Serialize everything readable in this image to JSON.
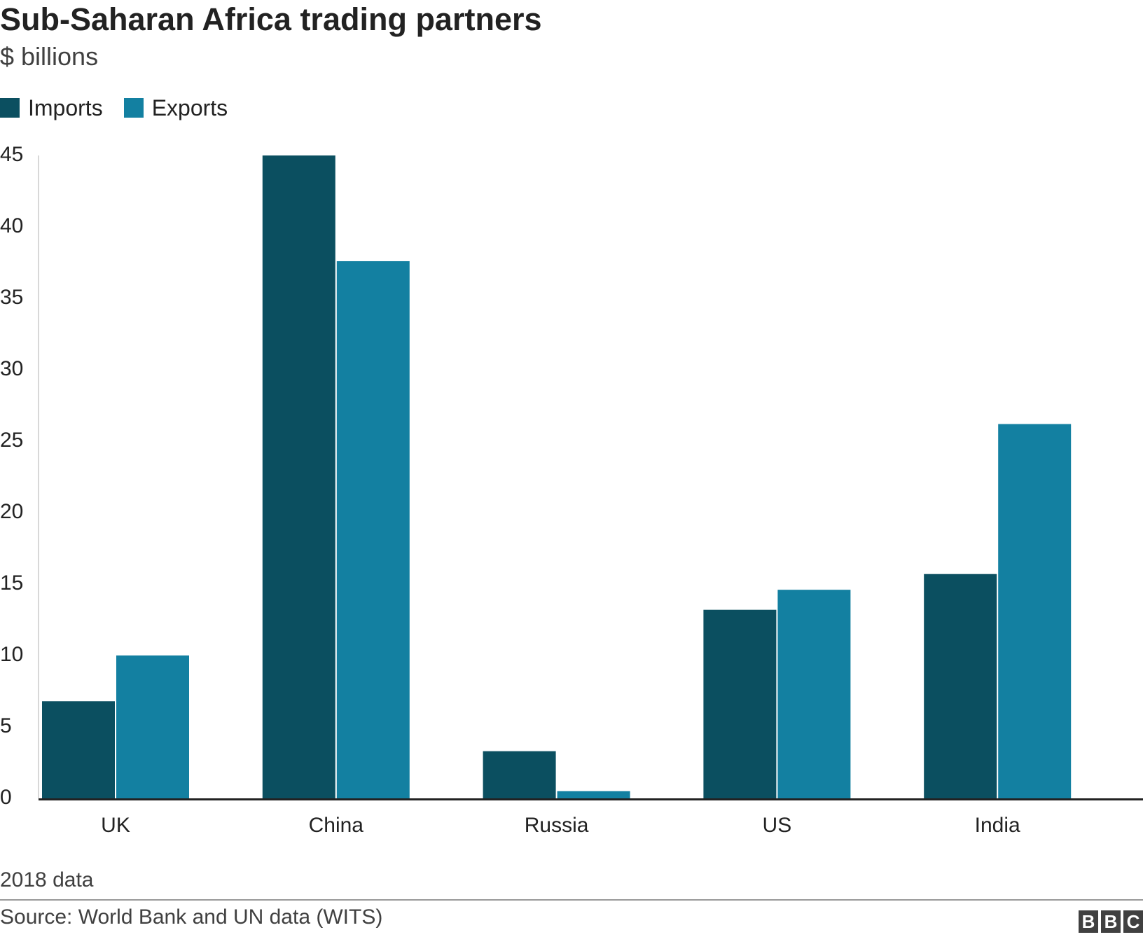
{
  "header": {
    "title": "Sub-Saharan Africa trading partners",
    "subtitle": "$ billions"
  },
  "legend": {
    "items": [
      {
        "label": "Imports",
        "color": "#0b4f60"
      },
      {
        "label": "Exports",
        "color": "#1380a1"
      }
    ]
  },
  "chart_data": {
    "type": "bar",
    "categories": [
      "UK",
      "China",
      "Russia",
      "US",
      "India"
    ],
    "series": [
      {
        "name": "Imports",
        "color": "#0b4f60",
        "values": [
          6.8,
          45.0,
          3.3,
          13.2,
          15.7
        ]
      },
      {
        "name": "Exports",
        "color": "#1380a1",
        "values": [
          10.0,
          37.6,
          0.5,
          14.6,
          26.2
        ]
      }
    ],
    "y_ticks": [
      "0",
      "5",
      "10",
      "15",
      "20",
      "25",
      "30",
      "35",
      "40",
      "45"
    ],
    "ylim": [
      0,
      45
    ],
    "grid": false,
    "legend_position": "top-left"
  },
  "footer": {
    "note": "2018 data",
    "source": "Source: World Bank and UN data (WITS)",
    "logo_letters": [
      "B",
      "B",
      "C"
    ]
  }
}
